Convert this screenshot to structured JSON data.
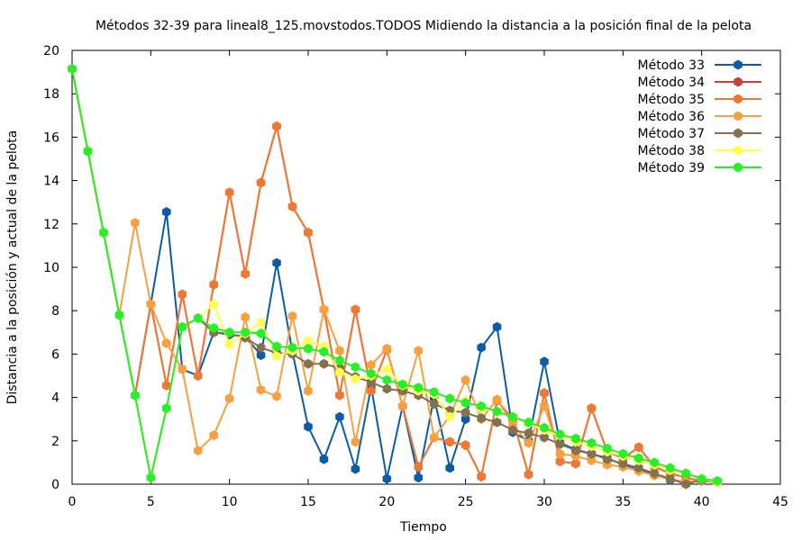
{
  "chart_data": {
    "type": "line",
    "title": "Métodos 32-39 para lineal8_125.movstodos.TODOS Midiendo la distancia a la posición final de la pelota",
    "xlabel": "Tiempo",
    "ylabel": "Distancia a la posición y actual de la pelota",
    "xlim": [
      0,
      45
    ],
    "ylim": [
      0,
      20
    ],
    "xticks": [
      0,
      5,
      10,
      15,
      20,
      25,
      30,
      35,
      40,
      45
    ],
    "yticks": [
      0,
      2,
      4,
      6,
      8,
      10,
      12,
      14,
      16,
      18,
      20
    ],
    "legend_position": "top-right",
    "series": [
      {
        "name": "Método 33",
        "color": "#0a5ca8",
        "x": [
          0,
          1,
          2,
          3,
          4,
          5,
          6,
          7,
          8,
          9,
          10,
          11,
          12,
          13,
          14,
          15,
          16,
          17,
          18,
          19,
          20,
          21,
          22,
          23,
          24,
          25,
          26,
          27,
          28,
          29,
          30,
          31,
          32,
          33,
          34,
          35,
          36,
          37,
          38,
          39,
          40,
          41
        ],
        "y": [
          19.15,
          15.35,
          11.6,
          7.8,
          4.1,
          8.3,
          12.55,
          5.3,
          5.0,
          7.0,
          6.9,
          6.8,
          5.95,
          10.2,
          6.1,
          2.65,
          1.15,
          3.1,
          0.7,
          4.5,
          0.25,
          3.6,
          0.3,
          4.0,
          0.75,
          3.0,
          6.3,
          7.25,
          2.4,
          2.0,
          5.65,
          1.9,
          1.6,
          1.4,
          1.2,
          0.9,
          0.7,
          0.45,
          0.2,
          0.1,
          0.15,
          0.1
        ]
      },
      {
        "name": "Método 34",
        "color": "#c8403a",
        "x": [
          0,
          1,
          2,
          3,
          4,
          5,
          6,
          7,
          8,
          9,
          10,
          11,
          12,
          13,
          14,
          15,
          16,
          17,
          18,
          19,
          20,
          21,
          22,
          23,
          24,
          25,
          26,
          27,
          28,
          29,
          30,
          31,
          32,
          33,
          34,
          35,
          36,
          37,
          38,
          39,
          40,
          41
        ],
        "y": [
          19.15,
          15.35,
          11.6,
          7.8,
          4.1,
          8.3,
          4.55,
          8.75,
          5.0,
          9.2,
          13.45,
          9.7,
          13.9,
          16.5,
          12.8,
          11.6,
          8.05,
          4.1,
          8.05,
          4.3,
          6.2,
          3.6,
          0.8,
          2.15,
          1.95,
          1.8,
          0.35,
          3.85,
          3.0,
          0.45,
          4.2,
          1.05,
          0.95,
          3.5,
          1.5,
          1.2,
          1.7,
          0.8,
          0.5,
          0.3,
          0.15,
          0.1
        ]
      },
      {
        "name": "Método 35",
        "color": "#f07832",
        "x": [
          0,
          1,
          2,
          3,
          4,
          5,
          6,
          7,
          8,
          9,
          10,
          11,
          12,
          13,
          14,
          15,
          16,
          17,
          18,
          19,
          20,
          21,
          22,
          23,
          24,
          25,
          26,
          27,
          28,
          29,
          30,
          31,
          32,
          33,
          34,
          35,
          36,
          37,
          38,
          39,
          40,
          41
        ],
        "y": [
          19.15,
          15.35,
          11.6,
          7.8,
          4.1,
          8.3,
          4.55,
          8.75,
          5.0,
          9.2,
          13.45,
          9.7,
          13.9,
          16.5,
          12.8,
          11.6,
          8.05,
          4.1,
          8.05,
          4.3,
          6.2,
          3.6,
          0.8,
          2.15,
          1.95,
          1.8,
          0.35,
          3.85,
          3.0,
          0.45,
          4.2,
          1.05,
          0.95,
          3.5,
          1.5,
          1.2,
          1.7,
          0.8,
          0.5,
          0.3,
          0.15,
          0.1
        ]
      },
      {
        "name": "Método 36",
        "color": "#f8a040",
        "x": [
          0,
          1,
          2,
          3,
          4,
          5,
          6,
          7,
          8,
          9,
          10,
          11,
          12,
          13,
          14,
          15,
          16,
          17,
          18,
          19,
          20,
          21,
          22,
          23,
          24,
          25,
          26,
          27,
          28,
          29,
          30,
          31,
          32,
          33,
          34,
          35,
          36,
          37,
          38,
          39,
          40,
          41
        ],
        "y": [
          19.15,
          15.35,
          11.6,
          7.8,
          12.05,
          8.3,
          6.5,
          5.3,
          1.55,
          2.25,
          3.95,
          7.7,
          4.35,
          4.05,
          7.75,
          4.3,
          8.05,
          6.15,
          1.95,
          5.5,
          6.25,
          3.6,
          6.15,
          2.15,
          3.15,
          4.8,
          3.0,
          3.9,
          2.75,
          1.9,
          3.6,
          1.4,
          1.3,
          1.1,
          0.9,
          0.8,
          0.6,
          0.4,
          0.25,
          0.1,
          0.15,
          0.1
        ]
      },
      {
        "name": "Método 37",
        "color": "#857050",
        "x": [
          0,
          1,
          2,
          3,
          4,
          5,
          6,
          7,
          8,
          9,
          10,
          11,
          12,
          13,
          14,
          15,
          16,
          17,
          18,
          19,
          20,
          21,
          22,
          23,
          24,
          25,
          26,
          27,
          28,
          29,
          30,
          31,
          32,
          33,
          34,
          35,
          36,
          37,
          38,
          39,
          40,
          41
        ],
        "y": [
          19.15,
          15.35,
          11.6,
          7.8,
          4.1,
          0.3,
          3.5,
          7.25,
          7.65,
          7.0,
          6.95,
          6.75,
          6.3,
          6.05,
          6.0,
          5.55,
          5.55,
          5.35,
          4.95,
          4.7,
          4.4,
          4.3,
          4.1,
          3.7,
          3.4,
          3.3,
          3.05,
          2.85,
          2.5,
          2.35,
          2.15,
          1.85,
          1.55,
          1.4,
          1.15,
          0.95,
          0.75,
          0.5,
          0.25,
          0.0,
          0.2,
          0.1
        ]
      },
      {
        "name": "Método 38",
        "color": "#ffff50",
        "x": [
          0,
          1,
          2,
          3,
          4,
          5,
          6,
          7,
          8,
          9,
          10,
          11,
          12,
          13,
          14,
          15,
          16,
          17,
          18,
          19,
          20,
          21,
          22,
          23,
          24,
          25,
          26,
          27,
          28,
          29,
          30,
          31,
          32,
          33,
          34,
          35,
          36,
          37,
          38,
          39,
          40,
          41
        ],
        "y": [
          19.15,
          15.35,
          11.6,
          7.8,
          4.1,
          0.3,
          3.5,
          7.25,
          7.65,
          8.3,
          6.45,
          6.95,
          7.45,
          5.9,
          6.15,
          6.6,
          6.35,
          5.15,
          4.85,
          5.0,
          5.3,
          4.55,
          4.3,
          4.15,
          3.1,
          3.85,
          3.5,
          3.35,
          3.1,
          2.8,
          2.5,
          2.25,
          1.95,
          1.75,
          1.5,
          1.3,
          1.1,
          0.9,
          0.65,
          0.5,
          0.25,
          0.1
        ]
      },
      {
        "name": "Método 39",
        "color": "#28f028",
        "x": [
          0,
          1,
          2,
          3,
          4,
          5,
          6,
          7,
          8,
          9,
          10,
          11,
          12,
          13,
          14,
          15,
          16,
          17,
          18,
          19,
          20,
          21,
          22,
          23,
          24,
          25,
          26,
          27,
          28,
          29,
          30,
          31,
          32,
          33,
          34,
          35,
          36,
          37,
          38,
          39,
          40,
          41
        ],
        "y": [
          19.15,
          15.35,
          11.6,
          7.8,
          4.1,
          0.3,
          3.5,
          7.25,
          7.65,
          7.2,
          7.0,
          7.0,
          6.95,
          6.35,
          6.3,
          6.25,
          6.1,
          5.7,
          5.4,
          5.1,
          4.8,
          4.6,
          4.45,
          4.25,
          3.95,
          3.75,
          3.6,
          3.35,
          3.1,
          2.85,
          2.6,
          2.3,
          2.1,
          1.9,
          1.65,
          1.4,
          1.2,
          1.0,
          0.75,
          0.5,
          0.25,
          0.15
        ]
      }
    ]
  }
}
